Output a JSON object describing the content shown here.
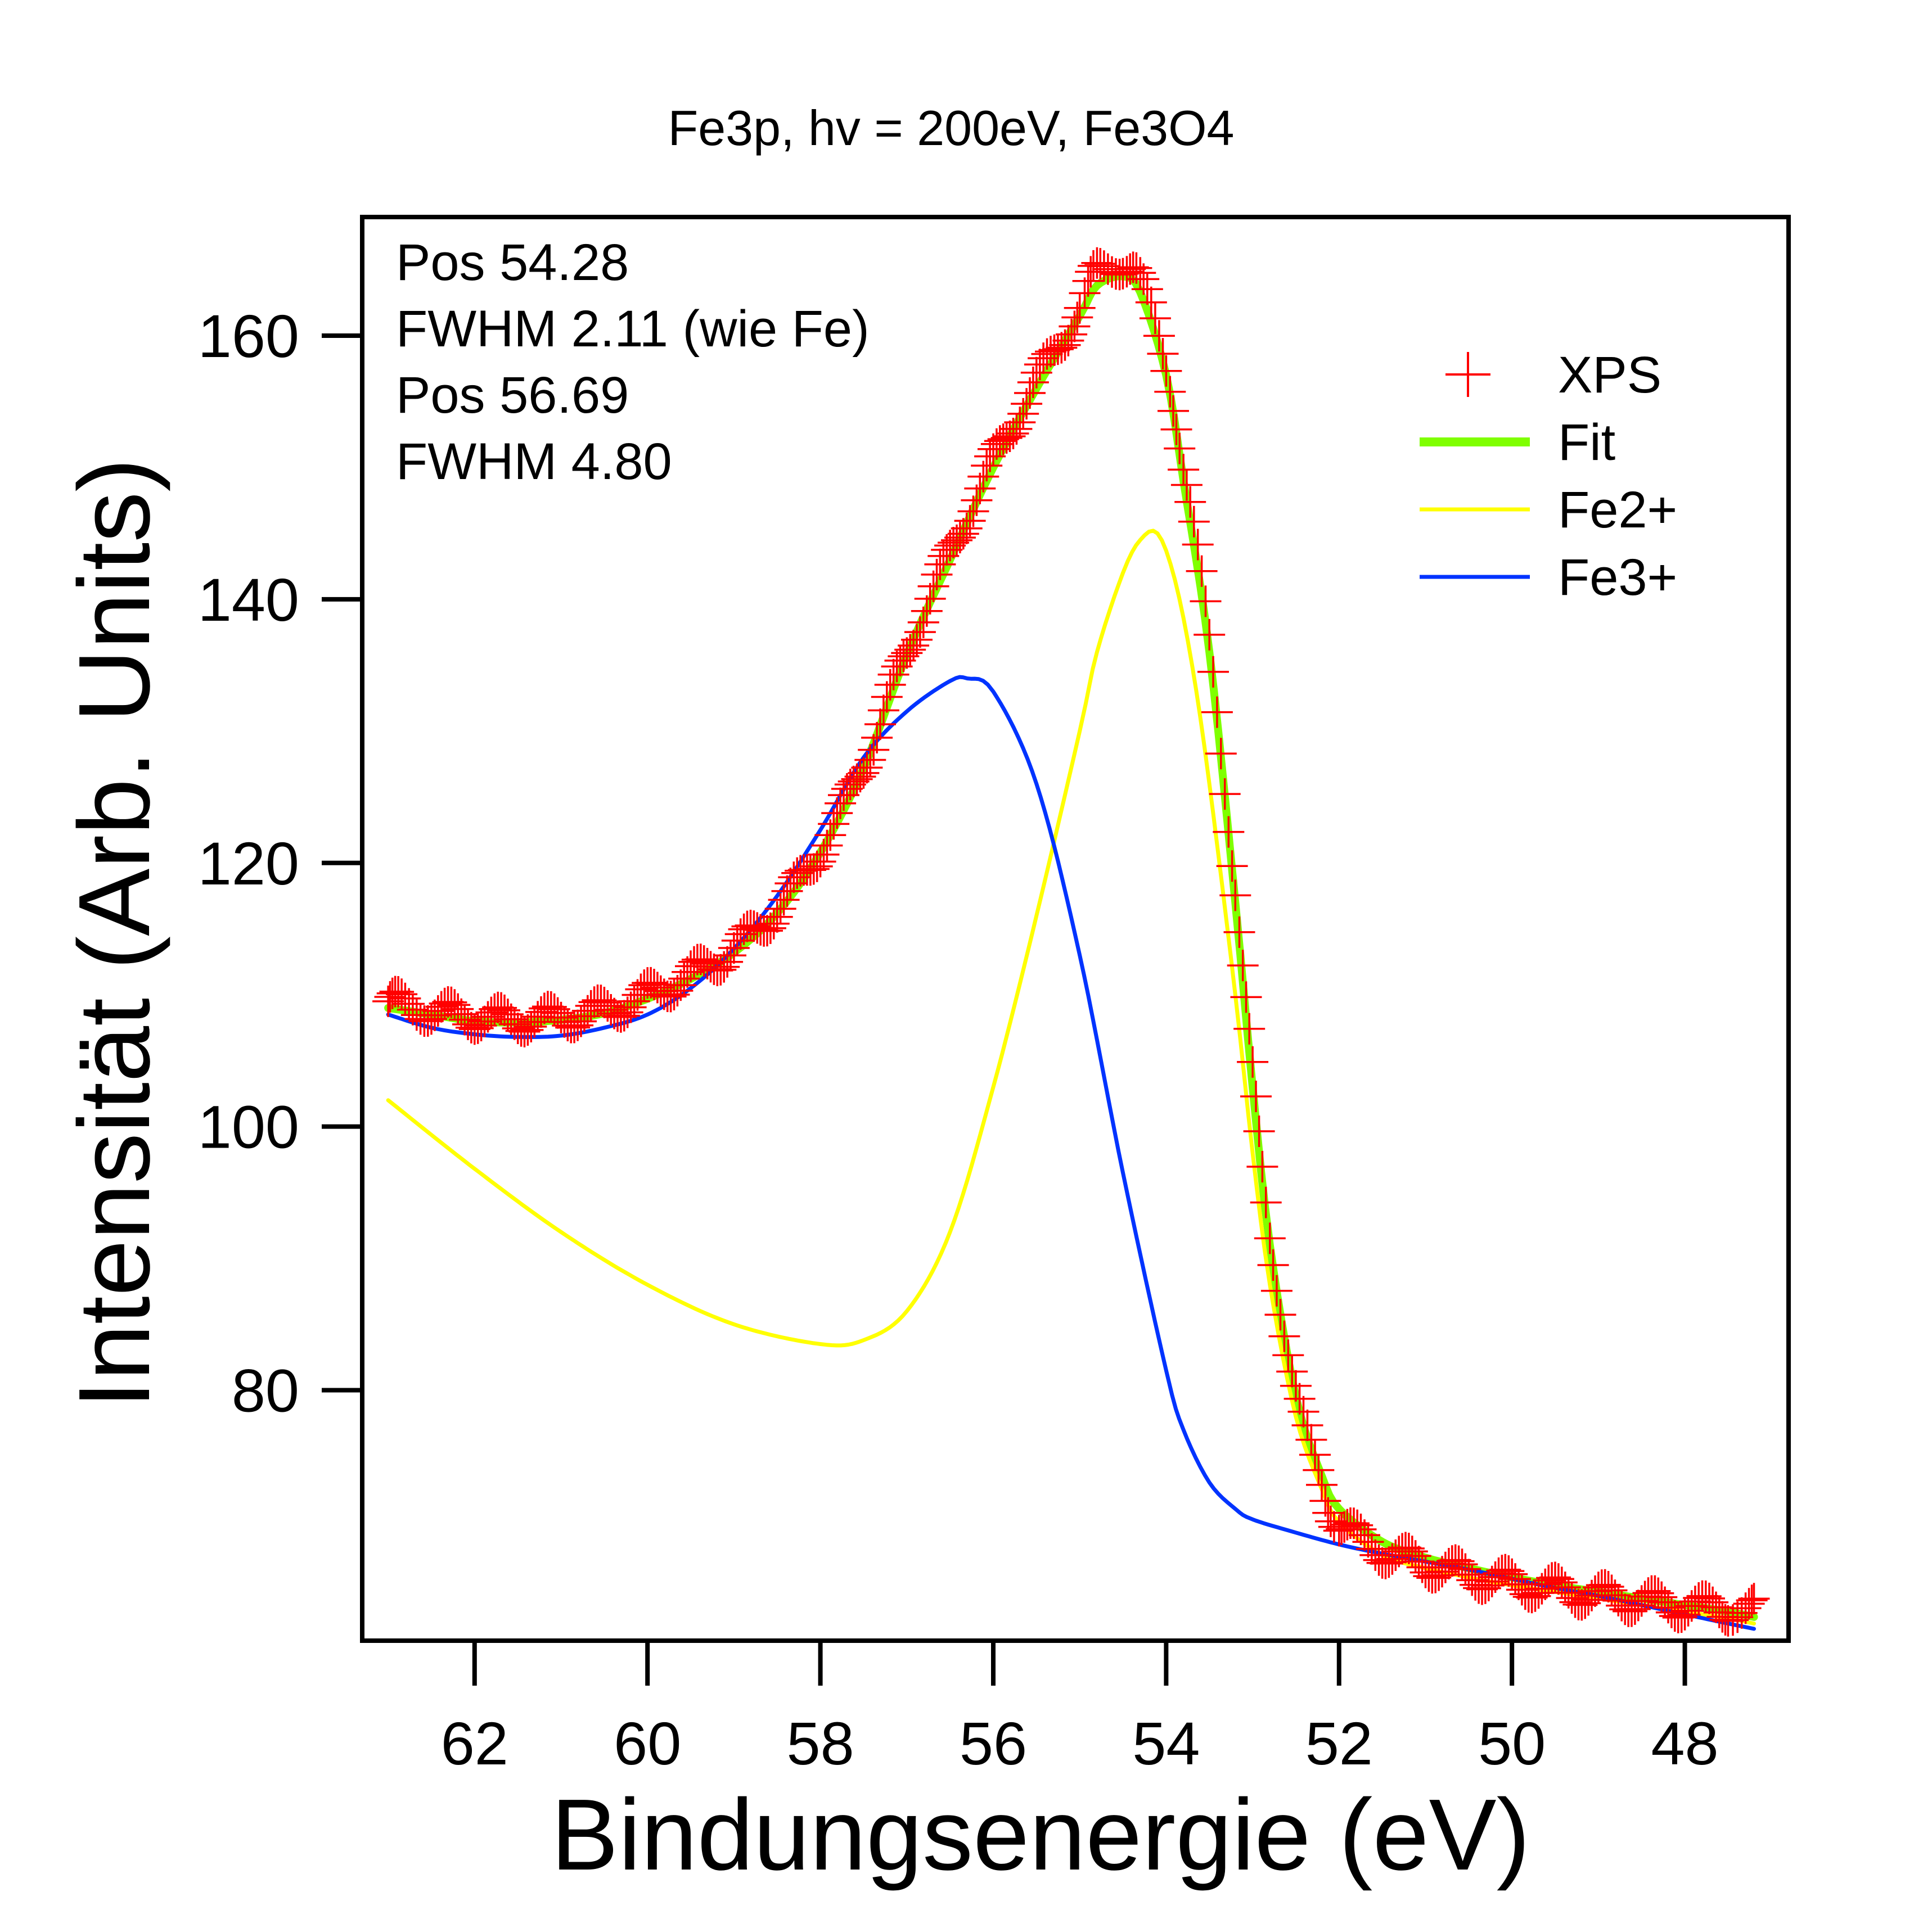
{
  "chart_data": {
    "type": "scatter",
    "title": "Fe3p, hv = 200eV, Fe3O4",
    "xlabel": "Bindungsenergie (eV)",
    "ylabel": "Intensität (Arb. Units)",
    "xlim": [
      63.3,
      46.8
    ],
    "ylim": [
      61,
      169
    ],
    "x_reversed": true,
    "grid": false,
    "x_ticks": [
      {
        "value": 62,
        "label": "62"
      },
      {
        "value": 60,
        "label": "60"
      },
      {
        "value": 58,
        "label": "58"
      },
      {
        "value": 56,
        "label": "56"
      },
      {
        "value": 54,
        "label": "54"
      },
      {
        "value": 52,
        "label": "52"
      },
      {
        "value": 50,
        "label": "50"
      },
      {
        "value": 48,
        "label": "48"
      }
    ],
    "y_ticks": [
      {
        "value": 80,
        "label": "80"
      },
      {
        "value": 100,
        "label": "100"
      },
      {
        "value": 120,
        "label": "120"
      },
      {
        "value": 140,
        "label": "140"
      },
      {
        "value": 160,
        "label": "160"
      }
    ],
    "annotations": [
      "Pos 54.28",
      "FWHM 2.11 (wie Fe)",
      "Pos 56.69",
      "FWHM 4.80"
    ],
    "legend_position": "top-right",
    "legend": [
      {
        "label": "XPS",
        "color": "#ff0000",
        "marker": "plus"
      },
      {
        "label": "Fit",
        "color": "#7fff00",
        "marker": "line-thick"
      },
      {
        "label": "Fe2+",
        "color": "#ffff00",
        "marker": "line"
      },
      {
        "label": "Fe3+",
        "color": "#0033ff",
        "marker": "line"
      }
    ],
    "series": [
      {
        "name": "XPS",
        "style": "markers",
        "color": "#ff0000",
        "x": [
          63.0,
          62.5,
          62.0,
          61.5,
          61.0,
          60.5,
          60.0,
          59.5,
          59.0,
          58.5,
          58.0,
          57.5,
          57.0,
          56.5,
          56.0,
          55.5,
          55.0,
          54.8,
          54.5,
          54.3,
          54.0,
          53.8,
          53.5,
          53.2,
          53.0,
          52.8,
          52.5,
          52.2,
          52.0,
          51.5,
          51.0,
          50.5,
          50.0,
          49.5,
          49.0,
          48.5,
          48.0,
          47.5,
          47.2
        ],
        "y": [
          109.5,
          108.8,
          108.3,
          108.1,
          108.3,
          108.8,
          110.0,
          111.5,
          113.5,
          116.5,
          121.0,
          127.5,
          136.0,
          143.5,
          150.5,
          156.5,
          162.0,
          164.8,
          165.5,
          164.0,
          158.0,
          150.0,
          137.0,
          118.0,
          104.0,
          92.0,
          80.0,
          73.0,
          70.0,
          67.8,
          66.8,
          66.0,
          65.4,
          64.9,
          64.4,
          64.0,
          63.6,
          63.4,
          63.3
        ]
      },
      {
        "name": "Fit",
        "style": "line",
        "color": "#7fff00",
        "x": [
          63.0,
          62.5,
          62.0,
          61.5,
          61.0,
          60.5,
          60.0,
          59.5,
          59.0,
          58.5,
          58.0,
          57.5,
          57.0,
          56.5,
          56.0,
          55.5,
          55.0,
          54.8,
          54.5,
          54.3,
          54.0,
          53.8,
          53.5,
          53.2,
          53.0,
          52.8,
          52.5,
          52.2,
          52.0,
          51.5,
          51.0,
          50.5,
          50.0,
          49.5,
          49.0,
          48.5,
          48.0,
          47.5,
          47.2
        ],
        "y": [
          109.0,
          108.5,
          108.0,
          107.9,
          108.1,
          108.6,
          109.7,
          111.2,
          113.2,
          116.2,
          120.8,
          127.2,
          135.8,
          143.0,
          150.0,
          156.0,
          161.5,
          163.8,
          164.5,
          163.3,
          157.0,
          149.0,
          136.0,
          117.0,
          103.0,
          91.0,
          79.5,
          73.5,
          71.0,
          68.5,
          67.3,
          66.5,
          65.8,
          65.2,
          64.7,
          64.2,
          63.7,
          63.2,
          62.8
        ]
      },
      {
        "name": "Fe2+",
        "style": "line",
        "color": "#ffff00",
        "x": [
          63.0,
          62.0,
          61.0,
          60.0,
          59.0,
          58.0,
          57.5,
          57.0,
          56.5,
          56.0,
          55.5,
          55.0,
          54.8,
          54.5,
          54.3,
          54.1,
          53.9,
          53.7,
          53.5,
          53.2,
          53.0,
          52.8,
          52.5,
          52.2,
          52.0,
          51.5,
          51.0,
          50.5,
          50.0,
          49.5,
          49.0,
          48.5,
          48.0,
          47.5,
          47.2
        ],
        "y": [
          102.0,
          96.8,
          92.0,
          88.0,
          85.0,
          83.5,
          83.8,
          86.0,
          92.0,
          103.0,
          116.0,
          130.0,
          136.0,
          142.0,
          144.5,
          145.0,
          141.5,
          135.0,
          126.0,
          110.0,
          98.0,
          88.0,
          78.0,
          72.5,
          70.0,
          67.5,
          66.5,
          65.8,
          65.2,
          64.7,
          64.2,
          63.7,
          63.2,
          62.7,
          62.3
        ]
      },
      {
        "name": "Fe3+",
        "style": "line",
        "color": "#0033ff",
        "x": [
          63.0,
          62.5,
          62.0,
          61.5,
          61.0,
          60.5,
          60.0,
          59.5,
          59.0,
          58.5,
          58.0,
          57.5,
          57.0,
          56.5,
          56.3,
          56.0,
          55.5,
          55.0,
          54.5,
          54.0,
          53.8,
          53.5,
          53.2,
          53.0,
          52.5,
          52.0,
          51.5,
          51.0,
          50.5,
          50.0,
          49.5,
          49.0,
          48.5,
          48.0,
          47.5,
          47.2
        ],
        "y": [
          108.5,
          107.5,
          107.0,
          106.8,
          106.9,
          107.5,
          108.5,
          110.5,
          113.5,
          117.5,
          122.5,
          128.0,
          131.5,
          133.8,
          134.0,
          133.0,
          126.0,
          113.0,
          96.5,
          81.5,
          77.0,
          73.0,
          71.0,
          70.2,
          69.2,
          68.3,
          67.6,
          67.0,
          66.4,
          65.7,
          65.0,
          64.4,
          63.7,
          63.0,
          62.3,
          61.9
        ]
      }
    ]
  }
}
